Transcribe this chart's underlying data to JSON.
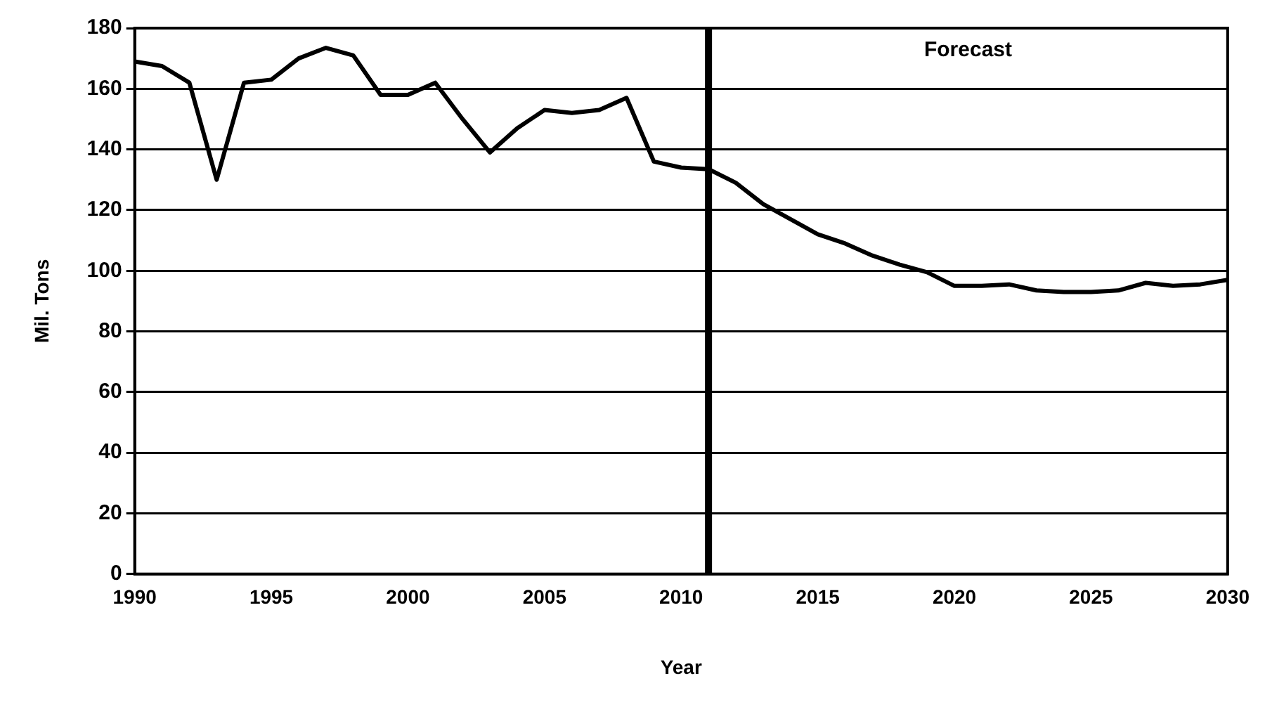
{
  "chart_data": {
    "type": "line",
    "xlabel": "Year",
    "ylabel": "Mil. Tons",
    "x": [
      1990,
      1991,
      1992,
      1993,
      1994,
      1995,
      1996,
      1997,
      1998,
      1999,
      2000,
      2001,
      2002,
      2003,
      2004,
      2005,
      2006,
      2007,
      2008,
      2009,
      2010,
      2011,
      2012,
      2013,
      2014,
      2015,
      2016,
      2017,
      2018,
      2019,
      2020,
      2021,
      2022,
      2023,
      2024,
      2025,
      2026,
      2027,
      2028,
      2029,
      2030
    ],
    "series": [
      {
        "color": "#000000",
        "values": [
          169,
          167.5,
          162,
          130,
          162,
          163,
          170,
          173.5,
          171,
          158,
          158,
          162,
          150,
          139,
          147,
          153,
          152,
          153,
          157,
          136,
          134,
          133.5,
          129,
          122,
          117,
          112,
          109,
          105,
          102,
          99.5,
          95,
          95,
          95.5,
          93.5,
          93,
          93,
          93.5,
          96,
          95,
          95.5,
          97
        ]
      }
    ],
    "xlim": [
      1990,
      2030
    ],
    "xticks": [
      1990,
      1995,
      2000,
      2005,
      2010,
      2015,
      2020,
      2025,
      2030
    ],
    "ylim": [
      0,
      180
    ],
    "yticks": [
      0,
      20,
      40,
      60,
      80,
      100,
      120,
      140,
      160,
      180
    ],
    "grid": "y",
    "legend": false,
    "marker": "none",
    "line_style": "solid",
    "ref_lines": [
      {
        "axis": "x",
        "value": 2011,
        "color": "#000000"
      }
    ],
    "annotations": [
      "Forecast"
    ]
  }
}
